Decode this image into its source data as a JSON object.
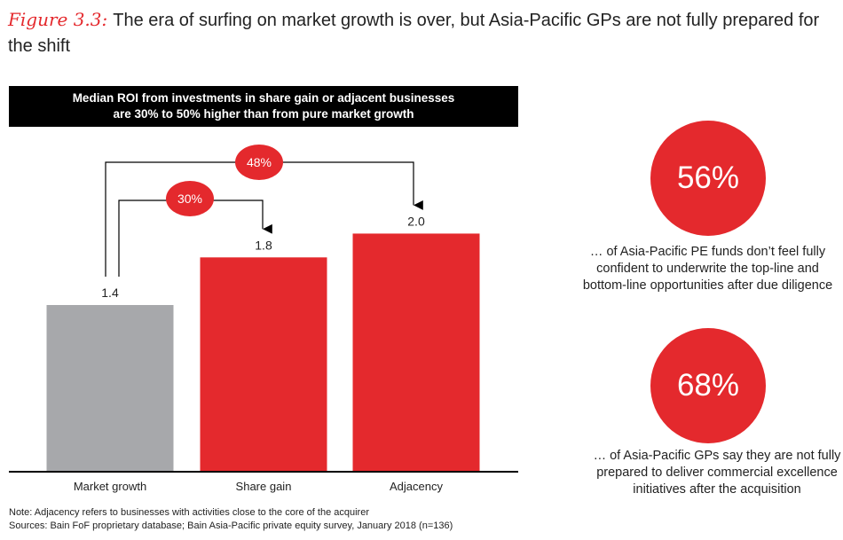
{
  "title": {
    "label": "Figure 3.3:",
    "text": "The era of surfing on market growth is over, but Asia-Pacific GPs are not fully prepared for the shift"
  },
  "header": {
    "line1": "Median ROI from investments in share gain or adjacent businesses",
    "line2": "are 30% to 50% higher than from pure market growth"
  },
  "chart_data": {
    "type": "bar",
    "categories": [
      "Market growth",
      "Share gain",
      "Adjacency"
    ],
    "values": [
      1.4,
      1.8,
      2.0
    ],
    "value_labels": [
      "1.4",
      "1.8",
      "2.0"
    ],
    "bar_colors": [
      "#a7a8ab",
      "#e4292d",
      "#e4292d"
    ],
    "ylim": [
      0,
      2.4
    ],
    "annotations": [
      {
        "label": "30%",
        "from": "Market growth",
        "to": "Share gain"
      },
      {
        "label": "48%",
        "from": "Market growth",
        "to": "Adjacency"
      }
    ],
    "title": "",
    "xlabel": "",
    "ylabel": ""
  },
  "stats": [
    {
      "value": "56%",
      "text": "… of Asia-Pacific PE funds don’t feel fully confident to underwrite the top-line and bottom-line opportunities after due diligence"
    },
    {
      "value": "68%",
      "text": "… of Asia-Pacific GPs say they are not fully prepared to deliver commercial excellence initiatives after the acquisition"
    }
  ],
  "notes": {
    "note": "Note: Adjacency refers to businesses with activities close to the core of the acquirer",
    "sources": "Sources: Bain FoF proprietary database; Bain Asia-Pacific private equity survey, January 2018 (n=136)"
  },
  "colors": {
    "accent": "#e4292d",
    "gray": "#a7a8ab",
    "black": "#000000"
  }
}
